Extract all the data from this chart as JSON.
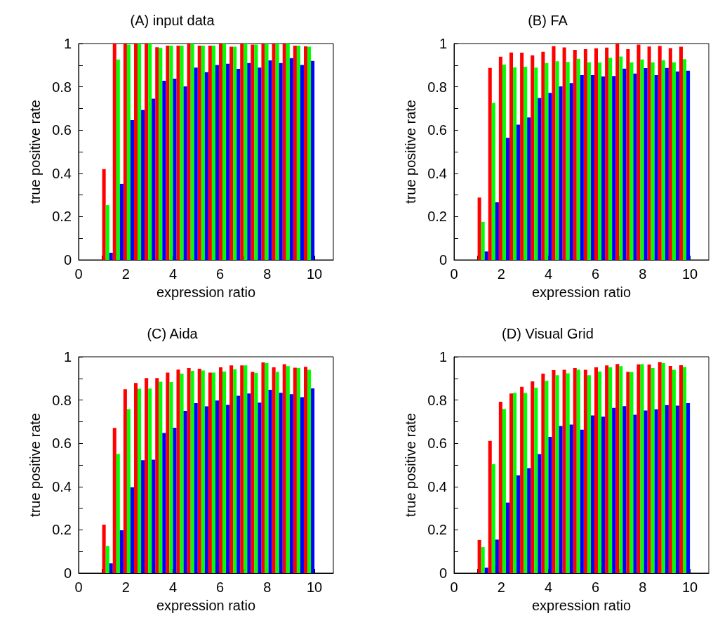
{
  "chart_data": [
    {
      "type": "bar",
      "title": "(A) input data",
      "xlabel": "expression ratio",
      "ylabel": "true positive rate",
      "x": [
        1.225,
        1.675,
        2.125,
        2.575,
        3.025,
        3.475,
        3.925,
        4.375,
        4.825,
        5.275,
        5.725,
        6.175,
        6.625,
        7.075,
        7.525,
        7.975,
        8.425,
        8.875,
        9.325,
        9.775
      ],
      "series": [
        {
          "color": "#ff0000",
          "values": [
            0.42,
            1.0,
            1.0,
            1.0,
            1.0,
            0.983,
            0.99,
            0.99,
            1.0,
            0.99,
            0.99,
            1.0,
            0.985,
            1.0,
            0.995,
            1.0,
            1.0,
            1.0,
            0.99,
            0.987
          ]
        },
        {
          "color": "#00ff00",
          "values": [
            0.253,
            0.926,
            0.995,
            1.0,
            1.0,
            0.98,
            0.99,
            0.99,
            1.0,
            0.99,
            0.99,
            1.0,
            0.985,
            1.0,
            0.995,
            1.0,
            1.0,
            1.0,
            0.99,
            0.985
          ]
        },
        {
          "color": "#0000ff",
          "values": [
            0.033,
            0.351,
            0.646,
            0.693,
            0.745,
            0.828,
            0.838,
            0.802,
            0.889,
            0.868,
            0.901,
            0.907,
            0.883,
            0.91,
            0.889,
            0.922,
            0.91,
            0.933,
            0.901,
            0.92
          ]
        }
      ],
      "xlim": [
        0,
        10.8
      ],
      "xticks": [
        0,
        {
          "value": 1,
          "label": null
        },
        2,
        {
          "value": 3,
          "label": null
        },
        4,
        {
          "value": 5,
          "label": null
        },
        6,
        {
          "value": 7,
          "label": null
        },
        8,
        {
          "value": 9,
          "label": null
        },
        10
      ],
      "ylim": [
        0,
        1
      ],
      "yticks": [
        0,
        {
          "value": 0.1,
          "label": null
        },
        0.2,
        {
          "value": 0.3,
          "label": null
        },
        0.4,
        {
          "value": 0.5,
          "label": null
        },
        0.6,
        {
          "value": 0.7,
          "label": null
        },
        0.8,
        {
          "value": 0.9,
          "label": null
        },
        1
      ],
      "grid": false
    },
    {
      "type": "bar",
      "title": "(B) FA",
      "xlabel": "expression ratio",
      "ylabel": "true positive rate",
      "x": [
        1.225,
        1.675,
        2.125,
        2.575,
        3.025,
        3.475,
        3.925,
        4.375,
        4.825,
        5.275,
        5.725,
        6.175,
        6.625,
        7.075,
        7.525,
        7.975,
        8.425,
        8.875,
        9.325,
        9.775
      ],
      "series": [
        {
          "color": "#ff0000",
          "values": [
            0.288,
            0.887,
            0.939,
            0.959,
            0.958,
            0.946,
            0.962,
            0.988,
            0.982,
            0.971,
            0.974,
            0.978,
            0.981,
            1.0,
            0.974,
            0.995,
            0.986,
            0.989,
            0.979,
            0.985
          ]
        },
        {
          "color": "#00ff00",
          "values": [
            0.176,
            0.726,
            0.903,
            0.89,
            0.893,
            0.889,
            0.91,
            0.918,
            0.915,
            0.929,
            0.913,
            0.912,
            0.934,
            0.94,
            0.913,
            0.926,
            0.913,
            0.923,
            0.913,
            0.928
          ]
        },
        {
          "color": "#0000ff",
          "values": [
            0.039,
            0.266,
            0.564,
            0.625,
            0.658,
            0.748,
            0.772,
            0.802,
            0.817,
            0.854,
            0.854,
            0.848,
            0.85,
            0.884,
            0.861,
            0.886,
            0.854,
            0.887,
            0.871,
            0.874
          ]
        }
      ],
      "xlim": [
        0,
        10.8
      ],
      "xticks": [
        0,
        {
          "value": 1,
          "label": null
        },
        2,
        {
          "value": 3,
          "label": null
        },
        4,
        {
          "value": 5,
          "label": null
        },
        6,
        {
          "value": 7,
          "label": null
        },
        8,
        {
          "value": 9,
          "label": null
        },
        10
      ],
      "ylim": [
        0,
        1
      ],
      "yticks": [
        0,
        {
          "value": 0.1,
          "label": null
        },
        0.2,
        {
          "value": 0.3,
          "label": null
        },
        0.4,
        {
          "value": 0.5,
          "label": null
        },
        0.6,
        {
          "value": 0.7,
          "label": null
        },
        0.8,
        {
          "value": 0.9,
          "label": null
        },
        1
      ],
      "grid": false
    },
    {
      "type": "bar",
      "title": "(C) Aida",
      "xlabel": "expression ratio",
      "ylabel": "true positive rate",
      "x": [
        1.225,
        1.675,
        2.125,
        2.575,
        3.025,
        3.475,
        3.925,
        4.375,
        4.825,
        5.275,
        5.725,
        6.175,
        6.625,
        7.075,
        7.525,
        7.975,
        8.425,
        8.875,
        9.325,
        9.775
      ],
      "series": [
        {
          "color": "#ff0000",
          "values": [
            0.224,
            0.671,
            0.85,
            0.879,
            0.902,
            0.902,
            0.927,
            0.941,
            0.948,
            0.945,
            0.927,
            0.951,
            0.96,
            0.96,
            0.93,
            0.974,
            0.951,
            0.966,
            0.95,
            0.954
          ]
        },
        {
          "color": "#00ff00",
          "values": [
            0.126,
            0.551,
            0.758,
            0.852,
            0.853,
            0.885,
            0.883,
            0.922,
            0.935,
            0.937,
            0.927,
            0.932,
            0.942,
            0.96,
            0.925,
            0.971,
            0.93,
            0.957,
            0.948,
            0.94
          ]
        },
        {
          "color": "#0000ff",
          "values": [
            0.045,
            0.198,
            0.397,
            0.522,
            0.524,
            0.648,
            0.672,
            0.75,
            0.786,
            0.771,
            0.798,
            0.778,
            0.82,
            0.83,
            0.788,
            0.847,
            0.834,
            0.827,
            0.813,
            0.854
          ]
        }
      ],
      "xlim": [
        0,
        10.8
      ],
      "xticks": [
        0,
        {
          "value": 1,
          "label": null
        },
        2,
        {
          "value": 3,
          "label": null
        },
        4,
        {
          "value": 5,
          "label": null
        },
        6,
        {
          "value": 7,
          "label": null
        },
        8,
        {
          "value": 9,
          "label": null
        },
        10
      ],
      "ylim": [
        0,
        1
      ],
      "yticks": [
        0,
        {
          "value": 0.1,
          "label": null
        },
        0.2,
        {
          "value": 0.3,
          "label": null
        },
        0.4,
        {
          "value": 0.5,
          "label": null
        },
        0.6,
        {
          "value": 0.7,
          "label": null
        },
        0.8,
        {
          "value": 0.9,
          "label": null
        },
        1
      ],
      "grid": false
    },
    {
      "type": "bar",
      "title": "(D) Visual Grid",
      "xlabel": "expression ratio",
      "ylabel": "true positive rate",
      "x": [
        1.225,
        1.675,
        2.125,
        2.575,
        3.025,
        3.475,
        3.925,
        4.375,
        4.825,
        5.275,
        5.725,
        6.175,
        6.625,
        7.075,
        7.525,
        7.975,
        8.425,
        8.875,
        9.325,
        9.775
      ],
      "series": [
        {
          "color": "#ff0000",
          "values": [
            0.153,
            0.611,
            0.792,
            0.83,
            0.861,
            0.886,
            0.922,
            0.938,
            0.94,
            0.948,
            0.94,
            0.951,
            0.96,
            0.967,
            0.93,
            0.965,
            0.964,
            0.976,
            0.958,
            0.961
          ]
        },
        {
          "color": "#00ff00",
          "values": [
            0.12,
            0.504,
            0.759,
            0.834,
            0.833,
            0.857,
            0.889,
            0.915,
            0.924,
            0.941,
            0.915,
            0.932,
            0.951,
            0.957,
            0.929,
            0.966,
            0.948,
            0.971,
            0.94,
            0.953
          ]
        },
        {
          "color": "#0000ff",
          "values": [
            0.025,
            0.155,
            0.326,
            0.452,
            0.485,
            0.55,
            0.63,
            0.68,
            0.687,
            0.663,
            0.729,
            0.723,
            0.764,
            0.772,
            0.732,
            0.752,
            0.757,
            0.777,
            0.774,
            0.786
          ]
        }
      ],
      "xlim": [
        0,
        10.8
      ],
      "xticks": [
        0,
        {
          "value": 1,
          "label": null
        },
        2,
        {
          "value": 3,
          "label": null
        },
        4,
        {
          "value": 5,
          "label": null
        },
        6,
        {
          "value": 7,
          "label": null
        },
        8,
        {
          "value": 9,
          "label": null
        },
        10
      ],
      "ylim": [
        0,
        1
      ],
      "yticks": [
        0,
        {
          "value": 0.1,
          "label": null
        },
        0.2,
        {
          "value": 0.3,
          "label": null
        },
        0.4,
        {
          "value": 0.5,
          "label": null
        },
        0.6,
        {
          "value": 0.7,
          "label": null
        },
        0.8,
        {
          "value": 0.9,
          "label": null
        },
        1
      ],
      "grid": false
    }
  ]
}
